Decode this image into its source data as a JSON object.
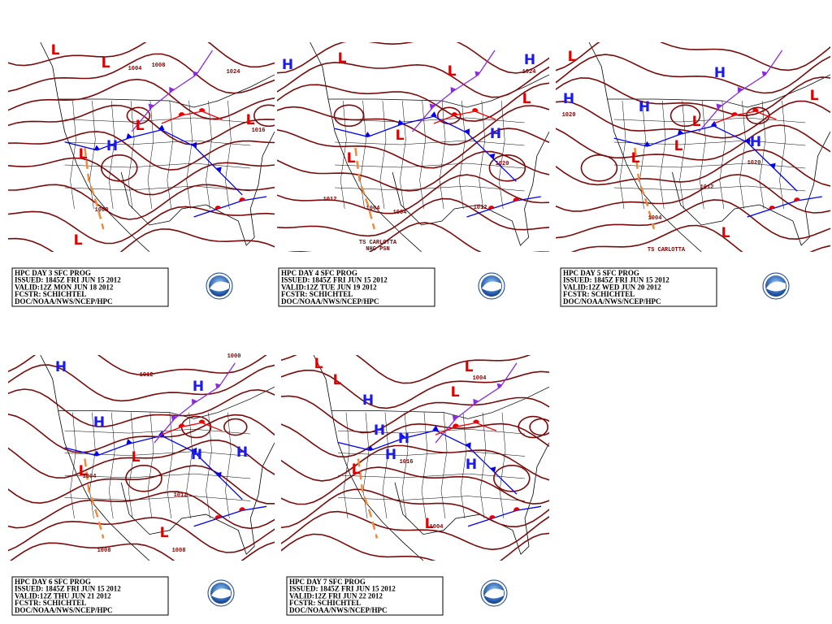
{
  "panels": [
    {
      "caption": [
        "HPC DAY 3 SFC PROG",
        "ISSUED: 1845Z FRI JUN 15 2012",
        "VALID:12Z MON JUN 18 2012",
        "FCSTR: SCHICHTEL",
        "DOC/NOAA/NWS/NCEP/HPC"
      ],
      "labels": [
        "L",
        "L",
        "L",
        "L",
        "L",
        "L",
        "H",
        "1004",
        "1008",
        "1016",
        "1008",
        "1024"
      ]
    },
    {
      "caption": [
        "HPC DAY 4 SFC PROG",
        "ISSUED: 1845Z FRI JUN 15 2012",
        "VALID:12Z TUE JUN 19 2012",
        "FCSTR: SCHICHTEL",
        "DOC/NOAA/NWS/NCEP/HPC"
      ],
      "labels": [
        "L",
        "L",
        "L",
        "L",
        "L",
        "H",
        "H",
        "H",
        "1012",
        "1004",
        "1004",
        "1020",
        "1012",
        "1024",
        "TS CARLOTTA",
        "NHC PSN"
      ]
    },
    {
      "caption": [
        "HPC DAY 5 SFC PROG",
        "ISSUED: 1845Z FRI JUN 15 2012",
        "VALID:12Z WED JUN 20 2012",
        "FCSTR: SCHICHTEL",
        "DOC/NOAA/NWS/NCEP/HPC"
      ],
      "labels": [
        "L",
        "L",
        "L",
        "L",
        "L",
        "L",
        "H",
        "H",
        "H",
        "H",
        "1004",
        "1012",
        "1020",
        "1020",
        "TS CARLOTTA"
      ]
    },
    {
      "caption": [
        "HPC DAY 6 SFC PROG",
        "ISSUED: 1845Z FRI JUN 15 2012",
        "VALID:12Z THU JUN 21 2012",
        "FCSTR: SCHICHTEL",
        "DOC/NOAA/NWS/NCEP/HPC"
      ],
      "labels": [
        "H",
        "H",
        "H",
        "H",
        "H",
        "L",
        "L",
        "L",
        "1012",
        "1004",
        "1012",
        "1008",
        "1008",
        "1000"
      ]
    },
    {
      "caption": [
        "HPC DAY 7 SFC PROG",
        "ISSUED: 1845Z FRI JUN 15 2012",
        "VALID:12Z FRI JUN 22 2012",
        "FCSTR: SCHICHTEL",
        "DOC/NOAA/NWS/NCEP/HPC"
      ],
      "labels": [
        "L",
        "L",
        "L",
        "L",
        "L",
        "L",
        "H",
        "H",
        "H",
        "H",
        "H",
        "1016",
        "1004",
        "1004"
      ]
    }
  ]
}
